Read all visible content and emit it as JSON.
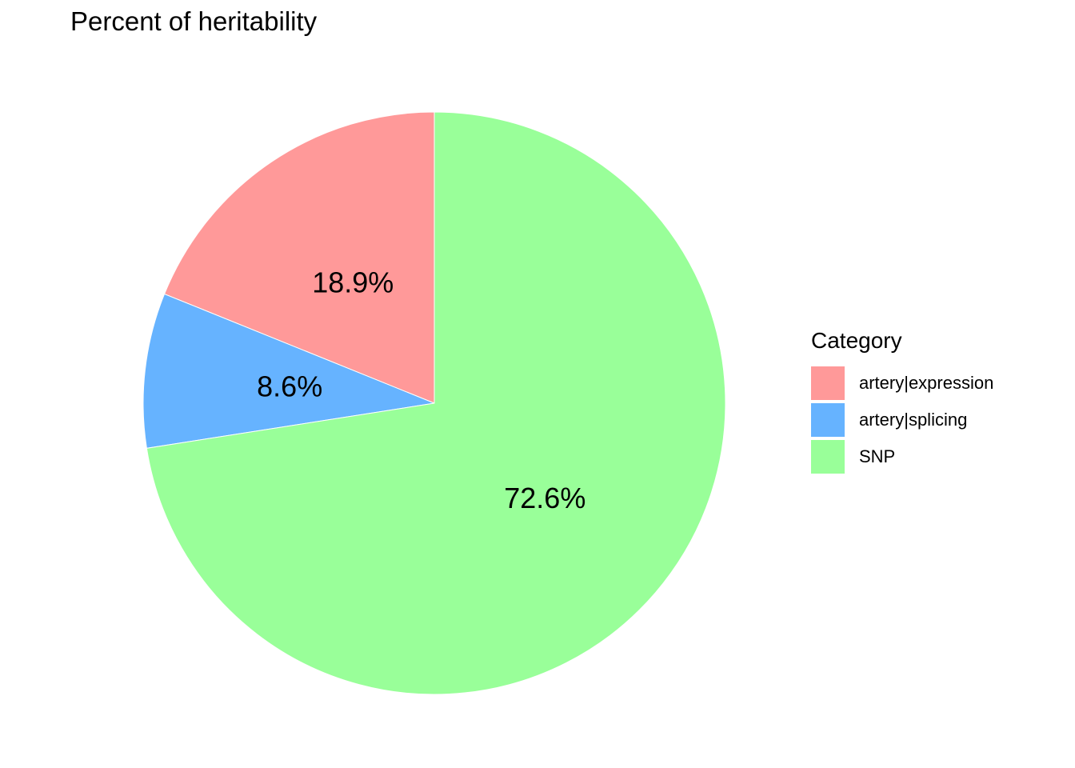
{
  "chart_data": {
    "type": "pie",
    "title": "Percent of heritability",
    "legend_title": "Category",
    "legend_position": "right",
    "slices": [
      {
        "name": "artery|expression",
        "value": 18.9,
        "label": "18.9%",
        "color": "#ff9999"
      },
      {
        "name": "artery|splicing",
        "value": 8.6,
        "label": "8.6%",
        "color": "#66b3ff"
      },
      {
        "name": "SNP",
        "value": 72.6,
        "label": "72.6%",
        "color": "#99ff99"
      }
    ]
  }
}
